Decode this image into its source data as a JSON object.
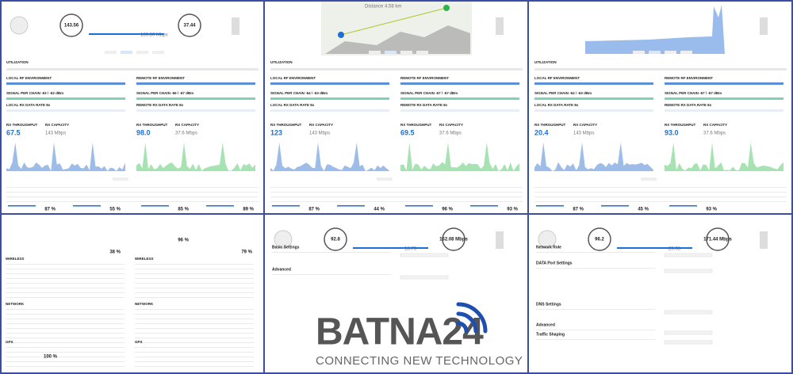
{
  "top_panels": [
    {
      "header_values": [
        "143.56",
        "37.44",
        "180.80 Mbps"
      ],
      "sections": [
        "UTILIZATION",
        "LOCAL RF ENVIRONMENT",
        "REMOTE RF ENVIRONMENT",
        "SIGNAL PER CHAIN -63 / -62 dBm",
        "SIGNAL PER CHAIN -66 / -67 dBm",
        "LOCAL RX DATA RATE 8x",
        "REMOTE RX DATA RATE 8x",
        "RX THROUGHPUT",
        "RX CAPACITY",
        "RX THROUGHPUT",
        "RX CAPACITY"
      ],
      "throughput": [
        "67.5",
        "143 Mbps",
        "98.0",
        "37.6 Mbps"
      ],
      "percentages": [
        "87 %",
        "55 %",
        "85 %",
        "89 %"
      ]
    },
    {
      "header_values": [
        "Distance 4.58 km"
      ],
      "sections": [
        "UTILIZATION",
        "LOCAL RF ENVIRONMENT",
        "REMOTE RF ENVIRONMENT",
        "SIGNAL PER CHAIN -64 / -63 dBm",
        "SIGNAL PER CHAIN -67 / -67 dBm",
        "LOCAL RX DATA RATE 8x",
        "REMOTE RX DATA RATE 8x",
        "RX THROUGHPUT",
        "RX CAPACITY",
        "RX THROUGHPUT",
        "RX CAPACITY"
      ],
      "throughput": [
        "123",
        "143 Mbps",
        "69.5",
        "37.6 Mbps"
      ],
      "percentages": [
        "87 %",
        "44 %",
        "96 %",
        "93 %"
      ]
    },
    {
      "header_values": [],
      "sections": [
        "UTILIZATION",
        "LOCAL RF ENVIRONMENT",
        "REMOTE RF ENVIRONMENT",
        "SIGNAL PER CHAIN -64 / -63 dBm",
        "SIGNAL PER CHAIN -67 / -67 dBm",
        "LOCAL RX DATA RATE 8x",
        "REMOTE RX DATA RATE 8x",
        "RX THROUGHPUT",
        "RX CAPACITY",
        "RX THROUGHPUT",
        "RX CAPACITY"
      ],
      "throughput": [
        "20.4",
        "143 Mbps",
        "93.0",
        "37.6 Mbps"
      ],
      "percentages": [
        "87 %",
        "45 %",
        "93 %"
      ]
    }
  ],
  "stats_panel": {
    "percentages": [
      "96 %",
      "38 %",
      "79 %"
    ],
    "sections": [
      "WIRELESS",
      "WIRELESS",
      "NETWORK",
      "NETWORK",
      "GPS",
      "GPS"
    ],
    "gps_value": "100 %"
  },
  "settings_panel": {
    "header_values": [
      "92.8",
      "162.08 Mbps",
      "18.73"
    ],
    "sections": [
      "Basic Settings",
      "Advanced"
    ]
  },
  "network_panel": {
    "header_values": [
      "96.2",
      "171.44 Mbps",
      "28.08"
    ],
    "sections": [
      "Network Role",
      "DATA Port Settings",
      "DNS Settings",
      "Advanced",
      "Traffic Shaping"
    ]
  },
  "logo": {
    "name": "BATNA24",
    "tagline": "CONNECTING NEW TECHNOLOGY"
  }
}
